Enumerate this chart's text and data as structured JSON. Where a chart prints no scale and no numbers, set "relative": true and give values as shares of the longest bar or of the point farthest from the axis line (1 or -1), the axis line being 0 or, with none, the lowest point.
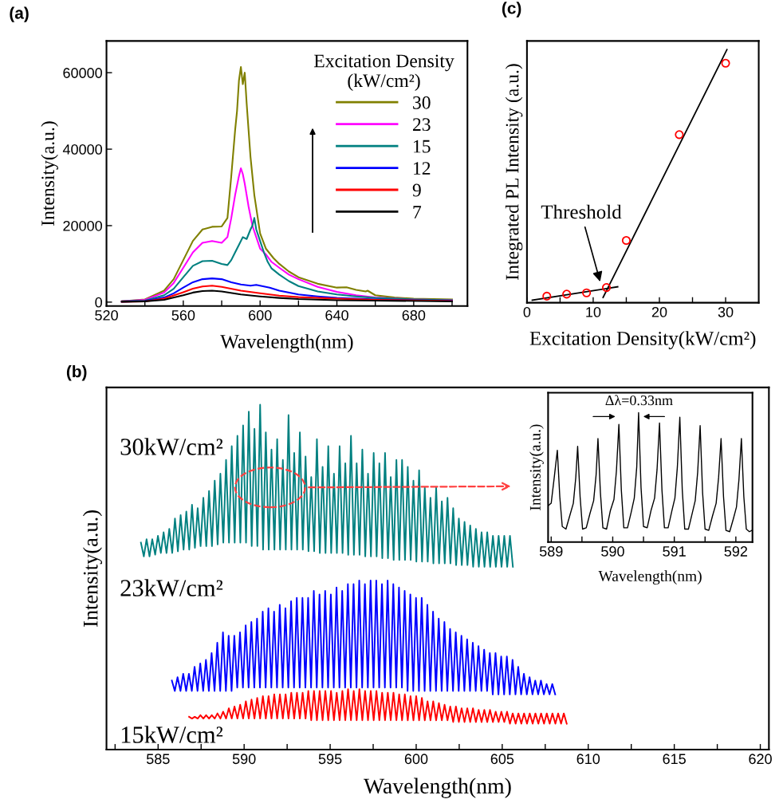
{
  "chart_data": [
    {
      "type": "line",
      "title": "(a)",
      "xlabel": "Wavelength(nm)",
      "ylabel": "Intensity(a.u.)",
      "legend_title": "Excitation Density\n(kW/cm²)",
      "legend": "top right",
      "xlim": [
        520,
        708
      ],
      "ylim": [
        -1000,
        68300
      ],
      "xticks": [
        520,
        {
          "value": 540,
          "label": null
        },
        560,
        {
          "value": 580,
          "label": null
        },
        600,
        {
          "value": 620,
          "label": null
        },
        640,
        {
          "value": 660,
          "label": null
        },
        680,
        {
          "value": 700,
          "label": null
        }
      ],
      "yticks": [
        0,
        20000,
        40000,
        60000
      ],
      "series": [
        {
          "name": "30",
          "color": "#808000",
          "x": [
            528,
            540,
            550,
            555,
            560,
            565,
            570,
            575,
            580,
            583,
            585,
            587,
            588,
            589,
            590,
            591,
            592,
            593,
            594,
            595,
            597,
            600,
            603,
            607,
            610,
            615,
            620,
            630,
            640,
            645,
            650,
            655,
            656,
            660,
            670,
            680,
            700
          ],
          "values": [
            200,
            700,
            3000,
            6000,
            11000,
            16000,
            19000,
            19700,
            19800,
            22000,
            33000,
            45000,
            50000,
            58000,
            61500,
            57000,
            60000,
            52000,
            45000,
            38000,
            28000,
            18000,
            14000,
            11500,
            10000,
            8000,
            6500,
            4800,
            3800,
            3900,
            3200,
            2800,
            3000,
            1800,
            1200,
            900,
            700
          ]
        },
        {
          "name": "23",
          "color": "#ff00ff",
          "x": [
            528,
            540,
            550,
            555,
            560,
            565,
            570,
            575,
            580,
            583,
            585,
            587,
            589,
            590,
            591,
            592,
            594,
            596,
            598,
            600,
            603,
            606,
            610,
            615,
            620,
            630,
            640,
            650,
            660,
            680,
            700
          ],
          "values": [
            200,
            600,
            2500,
            5000,
            9000,
            13000,
            15500,
            16000,
            15500,
            17000,
            22000,
            28000,
            33000,
            35000,
            33500,
            31000,
            25000,
            20000,
            17000,
            14000,
            12500,
            10500,
            9000,
            7200,
            6000,
            4000,
            2700,
            1800,
            1200,
            700,
            500
          ]
        },
        {
          "name": "15",
          "color": "#008080",
          "x": [
            528,
            540,
            550,
            555,
            560,
            565,
            570,
            575,
            580,
            583,
            585,
            587,
            589,
            591,
            593,
            595,
            596,
            597,
            598,
            599,
            600,
            602,
            604,
            606,
            610,
            615,
            620,
            630,
            640,
            650,
            660,
            680,
            700
          ],
          "values": [
            200,
            400,
            1800,
            3500,
            6500,
            9500,
            10700,
            10800,
            10000,
            9700,
            11000,
            13000,
            15000,
            17000,
            16500,
            19000,
            20000,
            22000,
            19000,
            17500,
            16000,
            13000,
            10500,
            8800,
            7200,
            5500,
            4200,
            2800,
            2000,
            1500,
            1100,
            700,
            500
          ]
        },
        {
          "name": "12",
          "color": "#0000ff",
          "x": [
            528,
            540,
            550,
            555,
            560,
            565,
            570,
            575,
            580,
            585,
            590,
            595,
            598,
            600,
            605,
            610,
            620,
            630,
            640,
            660,
            680,
            700
          ],
          "values": [
            100,
            300,
            1200,
            2300,
            3800,
            5200,
            6000,
            6200,
            6000,
            5200,
            4600,
            4300,
            4500,
            4300,
            3800,
            3000,
            2000,
            1500,
            1100,
            700,
            500,
            400
          ]
        },
        {
          "name": "9",
          "color": "#ff0000",
          "x": [
            528,
            540,
            550,
            560,
            565,
            570,
            575,
            580,
            590,
            600,
            610,
            620,
            640,
            660,
            700
          ],
          "values": [
            100,
            200,
            900,
            2600,
            3500,
            4100,
            4300,
            4000,
            3000,
            2300,
            1700,
            1300,
            900,
            600,
            300
          ]
        },
        {
          "name": "7",
          "color": "#000000",
          "x": [
            528,
            540,
            550,
            560,
            565,
            570,
            575,
            580,
            590,
            600,
            610,
            620,
            640,
            660,
            700
          ],
          "values": [
            100,
            200,
            600,
            1800,
            2500,
            2900,
            3000,
            2800,
            2000,
            1500,
            1100,
            800,
            500,
            400,
            200
          ]
        }
      ]
    },
    {
      "type": "scatter",
      "title": "(c)",
      "xlabel": "Excitation Density(kW/cm²)",
      "ylabel": "Integrated PL Intensity (a.u.)",
      "relative": true,
      "xlim": [
        0,
        35
      ],
      "xticks": [
        0,
        {
          "value": 5,
          "label": null
        },
        10,
        {
          "value": 15,
          "label": null
        },
        20,
        {
          "value": 25,
          "label": null
        },
        30
      ],
      "annotations": [
        {
          "text": "Threshold",
          "x": 11.1,
          "y": 0.079
        }
      ],
      "series": [
        {
          "type": "scatter",
          "marker": "circle",
          "color": "#ff0000",
          "x": [
            3,
            6,
            9,
            12,
            15,
            23,
            30
          ],
          "values": [
            0.026,
            0.034,
            0.039,
            0.06,
            0.246,
            0.664,
            0.946
          ]
        },
        {
          "type": "line",
          "color": "#000000",
          "x": [
            0.8,
            13.7
          ],
          "values": [
            0.01,
            0.063
          ]
        },
        {
          "type": "line",
          "color": "#000000",
          "x": [
            11.5,
            30.2
          ],
          "values": [
            0.021,
            1.0
          ]
        }
      ]
    },
    {
      "type": "line",
      "title": "(b)",
      "xlabel": "Wavelength(nm)",
      "ylabel": "Intensity(a.u.)",
      "relative": true,
      "xlim": [
        582,
        620.5
      ],
      "xticks": [
        {
          "value": 582.5,
          "label": null
        },
        585,
        {
          "value": 587.5,
          "label": null
        },
        590,
        {
          "value": 592.5,
          "label": null
        },
        595,
        {
          "value": 597.5,
          "label": null
        },
        600,
        {
          "value": 602.5,
          "label": null
        },
        605,
        {
          "value": 607.5,
          "label": null
        },
        610,
        {
          "value": 612.5,
          "label": null
        },
        615,
        {
          "value": 617.5,
          "label": null
        },
        620
      ],
      "series": [
        {
          "name": "30kW/cm²",
          "color": "#008080",
          "x": [
            584.0,
            584.17,
            584.33,
            584.5,
            584.66,
            584.83,
            584.99,
            585.16,
            585.32,
            585.49,
            585.65,
            585.82,
            585.98,
            586.15,
            586.31,
            586.48,
            586.64,
            586.81,
            586.97,
            587.14,
            587.3,
            587.47,
            587.63,
            587.8,
            587.96,
            588.13,
            588.29,
            588.46,
            588.62,
            588.79,
            588.95,
            589.12,
            589.28,
            589.45,
            589.61,
            589.78,
            589.94,
            590.11,
            590.27,
            590.44,
            590.6,
            590.77,
            590.93,
            591.1,
            591.26,
            591.43,
            591.59,
            591.76,
            591.92,
            592.09,
            592.25,
            592.42,
            592.58,
            592.75,
            592.91,
            593.08,
            593.24,
            593.41,
            593.57,
            593.74,
            593.9,
            594.07,
            594.23,
            594.4,
            594.56,
            594.73,
            594.89,
            595.06,
            595.22,
            595.39,
            595.55,
            595.72,
            595.88,
            596.05,
            596.21,
            596.38,
            596.54,
            596.71,
            596.87,
            597.04,
            597.2,
            597.37,
            597.53,
            597.7,
            597.86,
            598.03,
            598.19,
            598.36,
            598.52,
            598.69,
            598.85,
            599.02,
            599.18,
            599.35,
            599.51,
            599.68,
            599.84,
            600.01,
            600.17,
            600.34,
            600.5,
            600.67,
            600.83,
            601.0,
            601.16,
            601.33,
            601.49,
            601.66,
            601.82,
            601.99,
            602.15,
            602.32,
            602.48,
            602.65,
            602.81,
            602.98,
            603.14,
            603.31,
            603.47,
            603.64,
            603.8,
            603.97,
            604.13,
            604.3,
            604.46,
            604.63,
            604.79,
            604.96,
            605.12,
            605.29,
            605.45,
            605.62
          ],
          "values": [
            0.6,
            0.56,
            0.61,
            0.56,
            0.61,
            0.565,
            0.62,
            0.57,
            0.63,
            0.57,
            0.64,
            0.57,
            0.67,
            0.575,
            0.68,
            0.58,
            0.69,
            0.58,
            0.71,
            0.585,
            0.7,
            0.59,
            0.73,
            0.59,
            0.75,
            0.59,
            0.78,
            0.595,
            0.8,
            0.6,
            0.84,
            0.6,
            0.88,
            0.6,
            0.91,
            0.6,
            0.94,
            0.6,
            0.98,
            0.59,
            0.93,
            0.59,
            1.0,
            0.58,
            0.92,
            0.58,
            0.87,
            0.58,
            0.9,
            0.58,
            0.84,
            0.58,
            0.97,
            0.58,
            0.86,
            0.58,
            0.92,
            0.58,
            0.85,
            0.575,
            0.79,
            0.575,
            0.9,
            0.57,
            0.82,
            0.57,
            0.88,
            0.57,
            0.8,
            0.57,
            0.88,
            0.57,
            0.83,
            0.565,
            0.91,
            0.565,
            0.83,
            0.565,
            0.87,
            0.56,
            0.8,
            0.56,
            0.86,
            0.56,
            0.83,
            0.555,
            0.86,
            0.555,
            0.79,
            0.55,
            0.84,
            0.55,
            0.84,
            0.55,
            0.82,
            0.55,
            0.78,
            0.545,
            0.81,
            0.545,
            0.76,
            0.545,
            0.73,
            0.54,
            0.76,
            0.54,
            0.72,
            0.54,
            0.73,
            0.54,
            0.7,
            0.535,
            0.67,
            0.535,
            0.66,
            0.535,
            0.65,
            0.53,
            0.64,
            0.53,
            0.63,
            0.53,
            0.63,
            0.53,
            0.62,
            0.53,
            0.62,
            0.53,
            0.62,
            0.53,
            0.62,
            0.53
          ]
        },
        {
          "name": "23kW/cm²",
          "color": "#0000ff",
          "x": [
            585.8,
            585.97,
            586.13,
            586.3,
            586.46,
            586.63,
            586.79,
            586.96,
            587.12,
            587.29,
            587.45,
            587.62,
            587.78,
            587.95,
            588.11,
            588.28,
            588.44,
            588.61,
            588.77,
            588.94,
            589.1,
            589.27,
            589.43,
            589.6,
            589.76,
            589.93,
            590.09,
            590.26,
            590.42,
            590.59,
            590.75,
            590.92,
            591.08,
            591.25,
            591.41,
            591.58,
            591.74,
            591.91,
            592.07,
            592.24,
            592.4,
            592.57,
            592.73,
            592.9,
            593.06,
            593.23,
            593.39,
            593.56,
            593.72,
            593.89,
            594.05,
            594.22,
            594.38,
            594.55,
            594.71,
            594.88,
            595.04,
            595.21,
            595.37,
            595.54,
            595.7,
            595.87,
            596.03,
            596.2,
            596.36,
            596.53,
            596.69,
            596.86,
            597.02,
            597.19,
            597.35,
            597.52,
            597.68,
            597.85,
            598.01,
            598.18,
            598.34,
            598.51,
            598.67,
            598.84,
            599.0,
            599.17,
            599.33,
            599.5,
            599.66,
            599.83,
            599.99,
            600.16,
            600.32,
            600.49,
            600.65,
            600.82,
            600.98,
            601.15,
            601.31,
            601.48,
            601.64,
            601.81,
            601.97,
            602.14,
            602.3,
            602.47,
            602.63,
            602.8,
            602.96,
            603.13,
            603.29,
            603.46,
            603.62,
            603.79,
            603.95,
            604.12,
            604.28,
            604.45,
            604.61,
            604.78,
            604.94,
            605.11,
            605.27,
            605.44,
            605.6,
            605.77,
            605.93,
            606.1,
            606.26,
            606.43,
            606.59,
            606.76,
            606.92,
            607.09,
            607.25,
            607.42,
            607.58,
            607.75,
            607.91,
            608.08
          ],
          "values": [
            0.2,
            0.17,
            0.21,
            0.17,
            0.22,
            0.17,
            0.22,
            0.17,
            0.24,
            0.17,
            0.25,
            0.17,
            0.26,
            0.17,
            0.28,
            0.17,
            0.31,
            0.17,
            0.34,
            0.17,
            0.33,
            0.17,
            0.33,
            0.18,
            0.34,
            0.18,
            0.36,
            0.18,
            0.37,
            0.18,
            0.38,
            0.18,
            0.4,
            0.18,
            0.41,
            0.18,
            0.4,
            0.18,
            0.42,
            0.18,
            0.41,
            0.18,
            0.43,
            0.18,
            0.44,
            0.18,
            0.44,
            0.18,
            0.44,
            0.18,
            0.46,
            0.18,
            0.45,
            0.18,
            0.46,
            0.18,
            0.45,
            0.18,
            0.47,
            0.18,
            0.46,
            0.18,
            0.48,
            0.18,
            0.48,
            0.18,
            0.49,
            0.18,
            0.48,
            0.18,
            0.49,
            0.18,
            0.49,
            0.18,
            0.48,
            0.18,
            0.49,
            0.18,
            0.48,
            0.18,
            0.47,
            0.18,
            0.46,
            0.17,
            0.45,
            0.17,
            0.44,
            0.17,
            0.44,
            0.17,
            0.42,
            0.17,
            0.4,
            0.17,
            0.38,
            0.17,
            0.37,
            0.17,
            0.35,
            0.17,
            0.34,
            0.17,
            0.33,
            0.17,
            0.32,
            0.17,
            0.31,
            0.17,
            0.3,
            0.17,
            0.29,
            0.17,
            0.28,
            0.16,
            0.28,
            0.16,
            0.27,
            0.16,
            0.27,
            0.16,
            0.26,
            0.16,
            0.24,
            0.16,
            0.22,
            0.16,
            0.21,
            0.16,
            0.2,
            0.16,
            0.2,
            0.16,
            0.19,
            0.16,
            0.19,
            0.16
          ]
        },
        {
          "name": "15kW/cm²",
          "color": "#ff0000",
          "x": [
            586.8,
            586.97,
            587.13,
            587.3,
            587.46,
            587.63,
            587.79,
            587.96,
            588.12,
            588.29,
            588.45,
            588.62,
            588.78,
            588.95,
            589.11,
            589.28,
            589.44,
            589.61,
            589.77,
            589.94,
            590.1,
            590.27,
            590.43,
            590.6,
            590.76,
            590.93,
            591.09,
            591.26,
            591.42,
            591.59,
            591.75,
            591.92,
            592.08,
            592.25,
            592.41,
            592.58,
            592.74,
            592.91,
            593.07,
            593.24,
            593.4,
            593.57,
            593.73,
            593.9,
            594.06,
            594.23,
            594.39,
            594.56,
            594.72,
            594.89,
            595.05,
            595.22,
            595.38,
            595.55,
            595.71,
            595.88,
            596.04,
            596.21,
            596.37,
            596.54,
            596.7,
            596.87,
            597.03,
            597.2,
            597.36,
            597.53,
            597.69,
            597.86,
            598.02,
            598.19,
            598.35,
            598.52,
            598.68,
            598.85,
            599.01,
            599.18,
            599.34,
            599.51,
            599.67,
            599.84,
            600.0,
            600.17,
            600.33,
            600.5,
            600.66,
            600.83,
            600.99,
            601.16,
            601.32,
            601.49,
            601.65,
            601.82,
            601.98,
            602.15,
            602.31,
            602.48,
            602.64,
            602.81,
            602.97,
            603.14,
            603.3,
            603.47,
            603.63,
            603.8,
            603.96,
            604.13,
            604.29,
            604.46,
            604.62,
            604.79,
            604.95,
            605.12,
            605.28,
            605.45,
            605.61,
            605.78,
            605.94,
            606.11,
            606.27,
            606.44,
            606.6,
            606.77,
            606.93,
            607.1,
            607.26,
            607.43,
            607.59,
            607.76,
            607.92,
            608.09,
            608.25,
            608.42,
            608.58,
            608.75
          ],
          "values": [
            0.095,
            0.09,
            0.095,
            0.09,
            0.1,
            0.09,
            0.1,
            0.09,
            0.1,
            0.09,
            0.105,
            0.09,
            0.11,
            0.09,
            0.12,
            0.09,
            0.125,
            0.09,
            0.13,
            0.09,
            0.14,
            0.09,
            0.145,
            0.09,
            0.15,
            0.09,
            0.155,
            0.09,
            0.155,
            0.09,
            0.16,
            0.09,
            0.16,
            0.09,
            0.16,
            0.09,
            0.165,
            0.09,
            0.165,
            0.09,
            0.165,
            0.09,
            0.17,
            0.085,
            0.17,
            0.085,
            0.17,
            0.085,
            0.17,
            0.085,
            0.17,
            0.085,
            0.165,
            0.085,
            0.17,
            0.085,
            0.175,
            0.085,
            0.17,
            0.085,
            0.175,
            0.085,
            0.17,
            0.085,
            0.17,
            0.085,
            0.17,
            0.085,
            0.165,
            0.085,
            0.165,
            0.085,
            0.165,
            0.085,
            0.16,
            0.085,
            0.16,
            0.085,
            0.155,
            0.085,
            0.155,
            0.085,
            0.15,
            0.085,
            0.14,
            0.085,
            0.14,
            0.085,
            0.135,
            0.085,
            0.13,
            0.085,
            0.125,
            0.08,
            0.125,
            0.08,
            0.12,
            0.08,
            0.12,
            0.08,
            0.12,
            0.08,
            0.115,
            0.08,
            0.115,
            0.08,
            0.115,
            0.08,
            0.11,
            0.08,
            0.11,
            0.08,
            0.11,
            0.075,
            0.105,
            0.075,
            0.105,
            0.075,
            0.105,
            0.075,
            0.105,
            0.075,
            0.105,
            0.075,
            0.105,
            0.075,
            0.105,
            0.075,
            0.105,
            0.075,
            0.105,
            0.075,
            0.105,
            0.075
          ]
        }
      ]
    },
    {
      "type": "line",
      "xlabel": "Wavelength(nm)",
      "ylabel": "Intensity(a.u.)",
      "relative": true,
      "xlim": [
        588.95,
        592.27
      ],
      "xticks": [
        589,
        {
          "value": 589.5,
          "label": null
        },
        590,
        {
          "value": 590.5,
          "label": null
        },
        591,
        {
          "value": 591.5,
          "label": null
        },
        592
      ],
      "annotations": [
        "Δλ=0.33nm"
      ],
      "series": [
        {
          "color": "#000000",
          "x": [
            588.95,
            589.0,
            589.05,
            589.1,
            589.14,
            589.18,
            589.24,
            589.3,
            589.36,
            589.4,
            589.43,
            589.47,
            589.51,
            589.57,
            589.63,
            589.69,
            589.73,
            589.76,
            589.8,
            589.84,
            589.9,
            589.96,
            590.02,
            590.06,
            590.1,
            590.14,
            590.18,
            590.24,
            590.3,
            590.35,
            590.39,
            590.42,
            590.46,
            590.5,
            590.56,
            590.62,
            590.68,
            590.72,
            590.76,
            590.8,
            590.84,
            590.9,
            590.96,
            591.01,
            591.05,
            591.09,
            591.13,
            591.17,
            591.23,
            591.29,
            591.34,
            591.38,
            591.42,
            591.46,
            591.5,
            591.56,
            591.62,
            591.68,
            591.72,
            591.76,
            591.8,
            591.84,
            591.9,
            591.96,
            592.01,
            592.05,
            592.09,
            592.13,
            592.17,
            592.22,
            592.26
          ],
          "values": [
            0.28,
            0.3,
            0.5,
            0.71,
            0.35,
            0.12,
            0.1,
            0.2,
            0.3,
            0.5,
            0.74,
            0.35,
            0.1,
            0.11,
            0.22,
            0.32,
            0.52,
            0.8,
            0.38,
            0.11,
            0.1,
            0.24,
            0.33,
            0.55,
            0.91,
            0.4,
            0.11,
            0.11,
            0.23,
            0.34,
            0.58,
            1.0,
            0.42,
            0.12,
            0.11,
            0.24,
            0.34,
            0.56,
            0.92,
            0.4,
            0.11,
            0.11,
            0.24,
            0.34,
            0.58,
            0.965,
            0.4,
            0.1,
            0.1,
            0.22,
            0.32,
            0.54,
            0.9,
            0.38,
            0.1,
            0.09,
            0.2,
            0.3,
            0.5,
            0.8,
            0.35,
            0.09,
            0.08,
            0.18,
            0.27,
            0.48,
            0.8,
            0.35,
            0.1,
            0.08,
            0.09
          ]
        }
      ]
    }
  ]
}
